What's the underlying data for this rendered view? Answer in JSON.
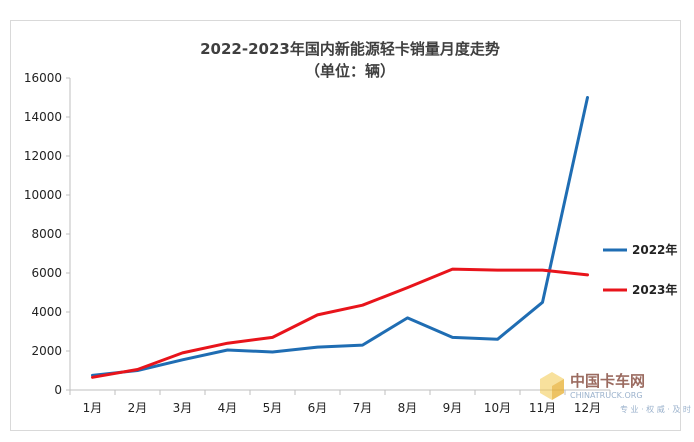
{
  "chart_data": {
    "type": "line",
    "title": "2022-2023年国内新能源轻卡销量月度走势",
    "subtitle": "（单位：辆）",
    "categories": [
      "1月",
      "2月",
      "3月",
      "4月",
      "5月",
      "6月",
      "7月",
      "8月",
      "9月",
      "10月",
      "11月",
      "12月"
    ],
    "series": [
      {
        "name": "2022年",
        "color": "#1f6db3",
        "values": [
          750,
          1000,
          1550,
          2050,
          1950,
          2200,
          2300,
          3700,
          2700,
          2600,
          4500,
          15000
        ]
      },
      {
        "name": "2023年",
        "color": "#e8141b",
        "values": [
          650,
          1050,
          1900,
          2400,
          2700,
          3850,
          4350,
          5250,
          6200,
          6150,
          6150,
          5900
        ]
      }
    ],
    "ylim": [
      0,
      16000
    ],
    "yticks": [
      0,
      2000,
      4000,
      6000,
      8000,
      10000,
      12000,
      14000,
      16000
    ],
    "xlabel": "",
    "ylabel": "",
    "grid": false,
    "legend_position": "right"
  },
  "watermark": {
    "name": "中国卡车网",
    "url": "CHINATRUCK.ORG",
    "tagline": "专 业 · 权 威 · 及 时"
  }
}
